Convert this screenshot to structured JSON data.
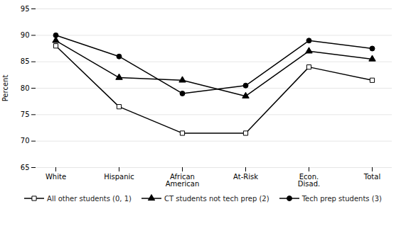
{
  "chart_data": {
    "type": "line",
    "categories": [
      "White",
      "Hispanic",
      "African\nAmerican",
      "At-Risk",
      "Econ.\nDisad.",
      "Total"
    ],
    "series": [
      {
        "name": "All other students (0, 1)",
        "color": "#000000",
        "marker": "square-open",
        "values": [
          88,
          76.5,
          71.5,
          71.5,
          84,
          81.5
        ]
      },
      {
        "name": "CT students not tech prep (2)",
        "color": "#000000",
        "marker": "triangle",
        "values": [
          89,
          82,
          81.5,
          78.5,
          87,
          85.5
        ]
      },
      {
        "name": "Tech prep students (3)",
        "color": "#000000",
        "marker": "circle",
        "values": [
          90,
          86,
          79,
          80.5,
          89,
          87.5
        ]
      }
    ],
    "ylabel": "Percent",
    "ylim": [
      65,
      95
    ],
    "yticks": [
      65,
      70,
      75,
      80,
      85,
      90,
      95
    ],
    "grid": true,
    "legend": "bottom"
  }
}
